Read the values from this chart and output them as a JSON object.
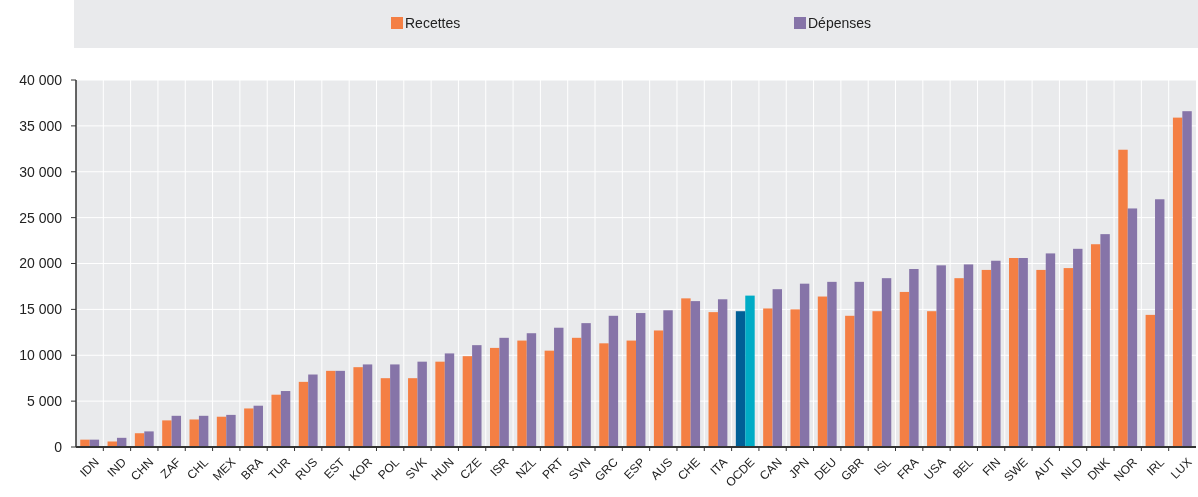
{
  "chart_data": {
    "type": "bar",
    "categories": [
      "IDN",
      "IND",
      "CHN",
      "ZAF",
      "CHL",
      "MEX",
      "BRA",
      "TUR",
      "RUS",
      "EST",
      "KOR",
      "POL",
      "SVK",
      "HUN",
      "CZE",
      "ISR",
      "NZL",
      "PRT",
      "SVN",
      "GRC",
      "ESP",
      "AUS",
      "CHE",
      "ITA",
      "OCDE",
      "CAN",
      "JPN",
      "DEU",
      "GBR",
      "ISL",
      "FRA",
      "USA",
      "BEL",
      "FIN",
      "SWE",
      "AUT",
      "NLD",
      "DNK",
      "NOR",
      "IRL",
      "LUX"
    ],
    "series": [
      {
        "name": "Recettes",
        "color": "#f47f44",
        "colors": [
          "#f47f44",
          "#f47f44",
          "#f47f44",
          "#f47f44",
          "#f47f44",
          "#f47f44",
          "#f47f44",
          "#f47f44",
          "#f47f44",
          "#f47f44",
          "#f47f44",
          "#f47f44",
          "#f47f44",
          "#f47f44",
          "#f47f44",
          "#f47f44",
          "#f47f44",
          "#f47f44",
          "#f47f44",
          "#f47f44",
          "#f47f44",
          "#f47f44",
          "#f47f44",
          "#f47f44",
          "#005f96",
          "#f47f44",
          "#f47f44",
          "#f47f44",
          "#f47f44",
          "#f47f44",
          "#f47f44",
          "#f47f44",
          "#f47f44",
          "#f47f44",
          "#f47f44",
          "#f47f44",
          "#f47f44",
          "#f47f44",
          "#f47f44",
          "#f47f44",
          "#f47f44"
        ],
        "values": [
          800,
          600,
          1500,
          2900,
          3000,
          3300,
          4200,
          5700,
          7100,
          8300,
          8700,
          7500,
          7500,
          9300,
          9900,
          10800,
          11600,
          10500,
          11900,
          11300,
          11600,
          12700,
          16200,
          14700,
          14800,
          15100,
          15000,
          16400,
          14300,
          14800,
          16900,
          14800,
          18400,
          19300,
          20600,
          19300,
          19500,
          22100,
          32400,
          14400,
          35900
        ]
      },
      {
        "name": "Dépenses",
        "color": "#8674a8",
        "colors": [
          "#8674a8",
          "#8674a8",
          "#8674a8",
          "#8674a8",
          "#8674a8",
          "#8674a8",
          "#8674a8",
          "#8674a8",
          "#8674a8",
          "#8674a8",
          "#8674a8",
          "#8674a8",
          "#8674a8",
          "#8674a8",
          "#8674a8",
          "#8674a8",
          "#8674a8",
          "#8674a8",
          "#8674a8",
          "#8674a8",
          "#8674a8",
          "#8674a8",
          "#8674a8",
          "#8674a8",
          "#00acc6",
          "#8674a8",
          "#8674a8",
          "#8674a8",
          "#8674a8",
          "#8674a8",
          "#8674a8",
          "#8674a8",
          "#8674a8",
          "#8674a8",
          "#8674a8",
          "#8674a8",
          "#8674a8",
          "#8674a8",
          "#8674a8",
          "#8674a8",
          "#8674a8"
        ],
        "values": [
          800,
          1000,
          1700,
          3400,
          3400,
          3500,
          4500,
          6100,
          7900,
          8300,
          9000,
          9000,
          9300,
          10200,
          11100,
          11900,
          12400,
          13000,
          13500,
          14300,
          14600,
          14900,
          15900,
          16100,
          16500,
          17200,
          17800,
          18000,
          18000,
          18400,
          19400,
          19800,
          19900,
          20300,
          20600,
          21100,
          21600,
          23200,
          26000,
          27000,
          36600
        ]
      }
    ],
    "ylim": [
      0,
      40000
    ],
    "yticks": [
      0,
      {
        "value": 5000,
        "label": "5 000"
      },
      {
        "value": 10000,
        "label": "10 000"
      },
      {
        "value": 15000,
        "label": "15 000"
      },
      {
        "value": 20000,
        "label": "20 000"
      },
      {
        "value": 25000,
        "label": "25 000"
      },
      {
        "value": 30000,
        "label": "30 000"
      },
      {
        "value": 35000,
        "label": "35 000"
      },
      {
        "value": 40000,
        "label": "40 000"
      }
    ],
    "grid": true,
    "legend": "top"
  }
}
